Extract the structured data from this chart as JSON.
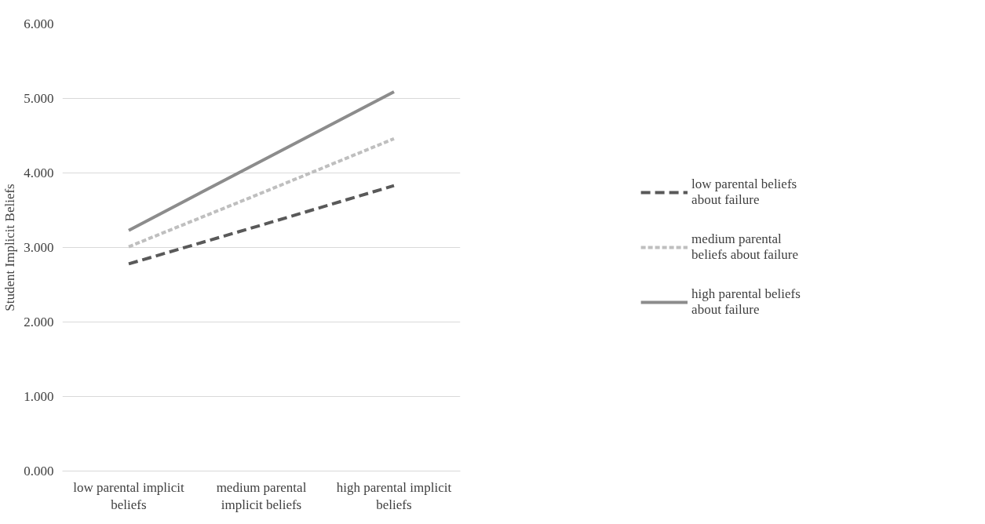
{
  "chart_data": {
    "type": "line",
    "ylabel": "Student Implicit Beliefs",
    "categories": [
      "low parental implicit beliefs",
      "medium parental implicit beliefs",
      "high parental implicit beliefs"
    ],
    "series": [
      {
        "name": "low parental beliefs about failure",
        "color": "#595959",
        "line_style": "dashed",
        "values": [
          2.78,
          3.3,
          3.83
        ]
      },
      {
        "name": "medium parental beliefs about failure",
        "color": "#bfbfbf",
        "line_style": "dotted",
        "values": [
          3.01,
          3.73,
          4.46
        ]
      },
      {
        "name": "high parental beliefs about failure",
        "color": "#8c8c8c",
        "line_style": "solid",
        "values": [
          3.23,
          4.16,
          5.09
        ]
      }
    ],
    "ylim": [
      0,
      6
    ],
    "yticks": [
      {
        "value": 0,
        "label": "0.000"
      },
      {
        "value": 1,
        "label": "1.000"
      },
      {
        "value": 2,
        "label": "2.000"
      },
      {
        "value": 3,
        "label": "3.000"
      },
      {
        "value": 4,
        "label": "4.000"
      },
      {
        "value": 5,
        "label": "5.000"
      },
      {
        "value": 6,
        "label": "6.000"
      }
    ],
    "grid": "y",
    "legend": "right",
    "marker": "none"
  }
}
